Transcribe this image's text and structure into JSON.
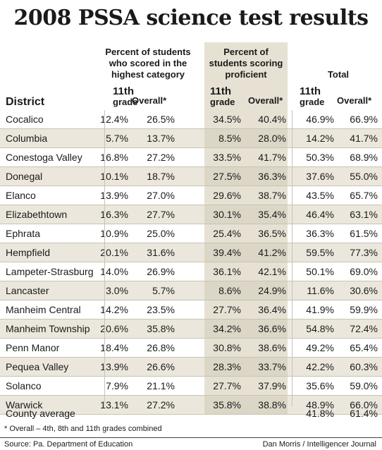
{
  "title": "2008 PSSA science test results",
  "groups": {
    "highest": "Percent of students who scored in the highest category",
    "proficient": "Percent of students scoring proficient",
    "total": "Total"
  },
  "headers": {
    "district": "District",
    "grade_top": "11th",
    "grade_bottom": "grade",
    "overall": "Overall*"
  },
  "rows": [
    {
      "district": "Cocalico",
      "h11": "12.4%",
      "hall": "26.5%",
      "p11": "34.5%",
      "pall": "40.4%",
      "t11": "46.9%",
      "tall": "66.9%"
    },
    {
      "district": "Columbia",
      "h11": "5.7%",
      "hall": "13.7%",
      "p11": "8.5%",
      "pall": "28.0%",
      "t11": "14.2%",
      "tall": "41.7%"
    },
    {
      "district": "Conestoga Valley",
      "h11": "16.8%",
      "hall": "27.2%",
      "p11": "33.5%",
      "pall": "41.7%",
      "t11": "50.3%",
      "tall": "68.9%"
    },
    {
      "district": "Donegal",
      "h11": "10.1%",
      "hall": "18.7%",
      "p11": "27.5%",
      "pall": "36.3%",
      "t11": "37.6%",
      "tall": "55.0%"
    },
    {
      "district": "Elanco",
      "h11": "13.9%",
      "hall": "27.0%",
      "p11": "29.6%",
      "pall": "38.7%",
      "t11": "43.5%",
      "tall": "65.7%"
    },
    {
      "district": "Elizabethtown",
      "h11": "16.3%",
      "hall": "27.7%",
      "p11": "30.1%",
      "pall": "35.4%",
      "t11": "46.4%",
      "tall": "63.1%"
    },
    {
      "district": "Ephrata",
      "h11": "10.9%",
      "hall": "25.0%",
      "p11": "25.4%",
      "pall": "36.5%",
      "t11": "36.3%",
      "tall": "61.5%"
    },
    {
      "district": "Hempfield",
      "h11": "20.1%",
      "hall": "31.6%",
      "p11": "39.4%",
      "pall": "41.2%",
      "t11": "59.5%",
      "tall": "77.3%"
    },
    {
      "district": "Lampeter-Strasburg",
      "h11": "14.0%",
      "hall": "26.9%",
      "p11": "36.1%",
      "pall": "42.1%",
      "t11": "50.1%",
      "tall": "69.0%"
    },
    {
      "district": "Lancaster",
      "h11": "3.0%",
      "hall": "5.7%",
      "p11": "8.6%",
      "pall": "24.9%",
      "t11": "11.6%",
      "tall": "30.6%"
    },
    {
      "district": "Manheim Central",
      "h11": "14.2%",
      "hall": "23.5%",
      "p11": "27.7%",
      "pall": "36.4%",
      "t11": "41.9%",
      "tall": "59.9%"
    },
    {
      "district": "Manheim Township",
      "h11": "20.6%",
      "hall": "35.8%",
      "p11": "34.2%",
      "pall": "36.6%",
      "t11": "54.8%",
      "tall": "72.4%"
    },
    {
      "district": "Penn Manor",
      "h11": "18.4%",
      "hall": "26.8%",
      "p11": "30.8%",
      "pall": "38.6%",
      "t11": "49.2%",
      "tall": "65.4%"
    },
    {
      "district": "Pequea Valley",
      "h11": "13.9%",
      "hall": "26.6%",
      "p11": "28.3%",
      "pall": "33.7%",
      "t11": "42.2%",
      "tall": "60.3%"
    },
    {
      "district": "Solanco",
      "h11": "7.9%",
      "hall": "21.1%",
      "p11": "27.7%",
      "pall": "37.9%",
      "t11": "35.6%",
      "tall": "59.0%"
    },
    {
      "district": "Warwick",
      "h11": "13.1%",
      "hall": "27.2%",
      "p11": "35.8%",
      "pall": "38.8%",
      "t11": "48.9%",
      "tall": "66.0%"
    }
  ],
  "county_average": {
    "label": "County average",
    "t11": "41.8%",
    "tall": "61.4%"
  },
  "footnote": "* Overall – 4th, 8th and 11th grades combined",
  "source": "Source: Pa. Department of Education",
  "credit": "Dan Morris / Intelligencer Journal"
}
